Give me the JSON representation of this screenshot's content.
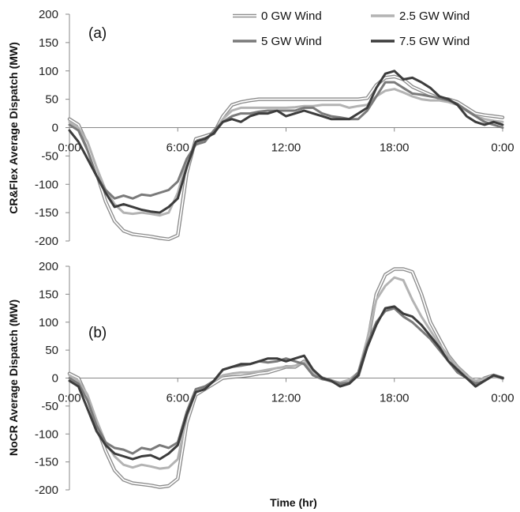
{
  "legend": [
    {
      "label": "0 GW Wind",
      "style": "double",
      "color": "#8c8c8c"
    },
    {
      "label": "2.5 GW Wind",
      "style": "solid",
      "color": "#b3b3b3"
    },
    {
      "label": "5 GW Wind",
      "style": "solid",
      "color": "#7a7a7a"
    },
    {
      "label": "7.5 GW Wind",
      "style": "solid",
      "color": "#3c3c3c"
    }
  ],
  "xlabel": "Time (hr)",
  "xticks": [
    "0:00",
    "6:00",
    "12:00",
    "18:00",
    "0:00"
  ],
  "chart_data": [
    {
      "type": "line",
      "panel_label": "(a)",
      "ylabel": "CR&Flex Average Dispatch (MW)",
      "ylim": [
        -200,
        200
      ],
      "yticks": [
        200,
        150,
        100,
        50,
        0,
        -50,
        -100,
        -150,
        -200
      ],
      "xlim": [
        0,
        24
      ],
      "x": [
        0,
        0.5,
        1,
        1.5,
        2,
        2.5,
        3,
        3.5,
        4,
        4.5,
        5,
        5.5,
        6,
        6.5,
        7,
        7.5,
        8,
        8.5,
        9,
        9.5,
        10,
        10.5,
        11,
        11.5,
        12,
        12.5,
        13,
        13.5,
        14,
        14.5,
        15,
        15.5,
        16,
        16.5,
        17,
        17.5,
        18,
        18.5,
        19,
        19.5,
        20,
        20.5,
        21,
        21.5,
        22,
        22.5,
        23,
        23.5,
        24
      ],
      "series": [
        {
          "name": "0 GW Wind",
          "values": [
            15,
            5,
            -30,
            -80,
            -130,
            -165,
            -182,
            -188,
            -190,
            -192,
            -195,
            -197,
            -190,
            -80,
            -20,
            -15,
            -10,
            20,
            40,
            45,
            48,
            50,
            50,
            50,
            50,
            50,
            50,
            50,
            50,
            50,
            50,
            50,
            50,
            52,
            75,
            88,
            90,
            85,
            72,
            65,
            58,
            52,
            50,
            45,
            35,
            25,
            22,
            20,
            18
          ]
        },
        {
          "name": "2.5 GW Wind",
          "values": [
            10,
            0,
            -25,
            -70,
            -110,
            -135,
            -150,
            -152,
            -150,
            -152,
            -155,
            -150,
            -115,
            -60,
            -30,
            -20,
            -10,
            15,
            30,
            35,
            35,
            35,
            35,
            35,
            35,
            36,
            38,
            38,
            40,
            40,
            40,
            35,
            38,
            40,
            55,
            65,
            68,
            62,
            55,
            50,
            48,
            48,
            45,
            40,
            30,
            20,
            15,
            12,
            10
          ]
        },
        {
          "name": "5 GW Wind",
          "values": [
            5,
            -5,
            -40,
            -85,
            -110,
            -125,
            -120,
            -125,
            -118,
            -120,
            -115,
            -110,
            -95,
            -55,
            -30,
            -25,
            -5,
            10,
            20,
            25,
            25,
            28,
            30,
            30,
            30,
            30,
            35,
            35,
            25,
            20,
            18,
            15,
            15,
            30,
            55,
            80,
            80,
            70,
            60,
            58,
            55,
            52,
            48,
            42,
            30,
            20,
            10,
            5,
            0
          ]
        },
        {
          "name": "7.5 GW Wind",
          "values": [
            -5,
            -25,
            -55,
            -85,
            -115,
            -140,
            -135,
            -140,
            -145,
            -148,
            -150,
            -140,
            -125,
            -70,
            -25,
            -20,
            -10,
            10,
            15,
            10,
            20,
            25,
            25,
            30,
            20,
            25,
            30,
            25,
            20,
            15,
            15,
            15,
            25,
            35,
            70,
            95,
            100,
            85,
            88,
            80,
            70,
            55,
            50,
            40,
            20,
            10,
            5,
            10,
            5
          ]
        }
      ]
    },
    {
      "type": "line",
      "panel_label": "(b)",
      "ylabel": "NoCR Average Dispatch (MW)",
      "ylim": [
        -200,
        200
      ],
      "yticks": [
        200,
        150,
        100,
        50,
        0,
        -50,
        -100,
        -150,
        -200
      ],
      "xlim": [
        0,
        24
      ],
      "x": [
        0,
        0.5,
        1,
        1.5,
        2,
        2.5,
        3,
        3.5,
        4,
        4.5,
        5,
        5.5,
        6,
        6.5,
        7,
        7.5,
        8,
        8.5,
        9,
        9.5,
        10,
        10.5,
        11,
        11.5,
        12,
        12.5,
        13,
        13.5,
        14,
        14.5,
        15,
        15.5,
        16,
        16.5,
        17,
        17.5,
        18,
        18.5,
        19,
        19.5,
        20,
        20.5,
        21,
        21.5,
        22,
        22.5,
        23,
        23.5,
        24
      ],
      "series": [
        {
          "name": "0 GW Wind",
          "values": [
            8,
            0,
            -35,
            -85,
            -130,
            -165,
            -182,
            -188,
            -190,
            -192,
            -195,
            -193,
            -180,
            -80,
            -30,
            -20,
            -10,
            0,
            2,
            3,
            5,
            8,
            10,
            15,
            20,
            20,
            30,
            10,
            0,
            -5,
            -10,
            -5,
            5,
            60,
            150,
            185,
            195,
            195,
            190,
            150,
            100,
            70,
            40,
            20,
            5,
            -10,
            0,
            5,
            0
          ]
        },
        {
          "name": "2.5 GW Wind",
          "values": [
            5,
            -5,
            -30,
            -75,
            -115,
            -140,
            -155,
            -160,
            -155,
            -158,
            -162,
            -160,
            -145,
            -70,
            -25,
            -20,
            -5,
            5,
            8,
            10,
            10,
            12,
            15,
            18,
            20,
            22,
            28,
            10,
            0,
            -5,
            -8,
            -3,
            10,
            70,
            140,
            165,
            180,
            175,
            140,
            110,
            85,
            60,
            40,
            20,
            5,
            -5,
            0,
            2,
            0
          ]
        },
        {
          "name": "5 GW Wind",
          "values": [
            0,
            -10,
            -40,
            -85,
            -115,
            -125,
            -128,
            -135,
            -125,
            -128,
            -120,
            -125,
            -115,
            -60,
            -20,
            -15,
            -5,
            15,
            20,
            22,
            25,
            30,
            28,
            30,
            35,
            30,
            25,
            5,
            -2,
            -5,
            -10,
            -8,
            10,
            60,
            100,
            120,
            125,
            110,
            100,
            85,
            70,
            50,
            30,
            10,
            0,
            -10,
            -5,
            5,
            0
          ]
        },
        {
          "name": "7.5 GW Wind",
          "values": [
            -5,
            -15,
            -55,
            -95,
            -120,
            -135,
            -140,
            -145,
            -140,
            -138,
            -145,
            -135,
            -120,
            -65,
            -25,
            -20,
            -5,
            15,
            20,
            25,
            25,
            30,
            35,
            35,
            30,
            35,
            40,
            15,
            0,
            -5,
            -15,
            -10,
            5,
            55,
            95,
            125,
            128,
            115,
            110,
            95,
            75,
            55,
            30,
            15,
            0,
            -15,
            -5,
            5,
            0
          ]
        }
      ]
    }
  ]
}
